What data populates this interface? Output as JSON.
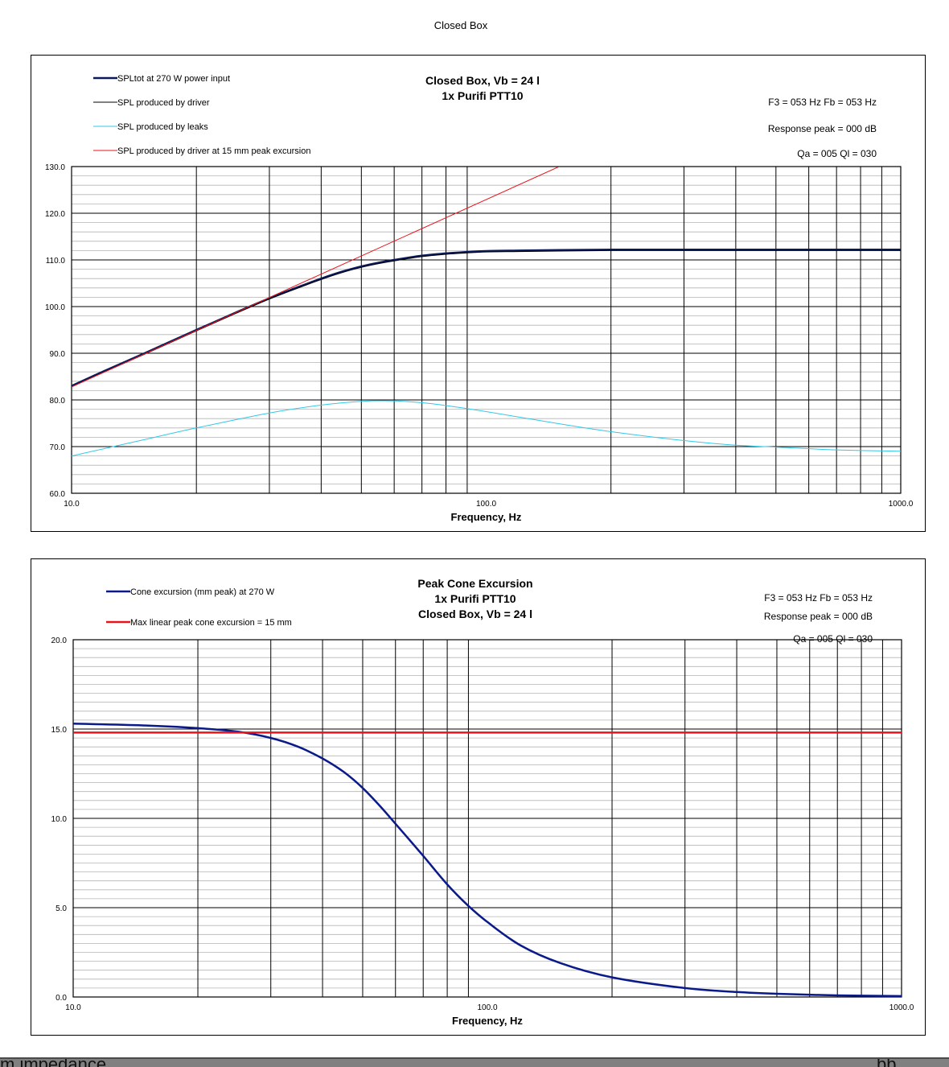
{
  "page_title": "Closed Box",
  "chart_data": [
    {
      "type": "line",
      "title": "Closed Box, Vb = 24 l",
      "subtitle": "1x Purifi PTT10",
      "xlabel": "Frequency, Hz",
      "ylabel": "",
      "x_scale": "log",
      "xlim": [
        10,
        1000
      ],
      "ylim": [
        60,
        130
      ],
      "yticks": [
        60,
        70,
        80,
        90,
        100,
        110,
        120,
        130
      ],
      "ytick_labels": [
        "60.0",
        "70.0",
        "80.0",
        "90.0",
        "100.0",
        "110.0",
        "120.0",
        "130.0"
      ],
      "xtick_labels": [
        "10.0",
        "100.0",
        "1000.0"
      ],
      "grid": true,
      "legend_position": "top-left",
      "annotations": [
        "F3 = 053 Hz  Fb = 053 Hz",
        "Response peak = 000 dB",
        "Qa = 005  Ql = 030"
      ],
      "series": [
        {
          "name": "SPLtot at 270 W power input",
          "color": "#0a1a5c",
          "width": 2.5,
          "x": [
            10,
            12,
            15,
            20,
            25,
            30,
            35,
            40,
            45,
            50,
            55,
            60,
            70,
            80,
            90,
            100,
            120,
            150,
            200,
            300,
            500,
            700,
            1000
          ],
          "y": [
            83.0,
            86.2,
            90.0,
            95.0,
            98.8,
            101.8,
            104.1,
            106.0,
            107.5,
            108.6,
            109.4,
            110.0,
            110.9,
            111.4,
            111.7,
            111.9,
            112.0,
            112.1,
            112.2,
            112.2,
            112.2,
            112.2,
            112.2
          ]
        },
        {
          "name": "SPL produced by driver",
          "color": "#000000",
          "width": 1,
          "x": [
            10,
            12,
            15,
            20,
            25,
            30,
            35,
            40,
            45,
            50,
            55,
            60,
            70,
            80,
            90,
            100,
            120,
            150,
            200,
            300,
            500,
            700,
            1000
          ],
          "y": [
            82.8,
            86.0,
            89.8,
            94.8,
            98.6,
            101.6,
            103.9,
            105.8,
            107.3,
            108.4,
            109.2,
            109.8,
            110.7,
            111.2,
            111.5,
            111.7,
            111.8,
            111.9,
            112.0,
            112.0,
            112.0,
            112.0,
            112.0
          ]
        },
        {
          "name": "SPL produced by leaks",
          "color": "#33c8e8",
          "width": 1,
          "x": [
            10,
            15,
            20,
            30,
            40,
            50,
            60,
            70,
            80,
            100,
            150,
            200,
            300,
            400,
            500,
            700,
            1000
          ],
          "y": [
            68.0,
            71.5,
            74.0,
            77.2,
            78.9,
            79.7,
            79.8,
            79.4,
            78.8,
            77.5,
            74.9,
            73.2,
            71.3,
            70.3,
            69.9,
            69.3,
            69.0
          ]
        },
        {
          "name": "SPL produced by driver at 15 mm peak excursion",
          "color": "#e8141c",
          "width": 1,
          "x": [
            10,
            150
          ],
          "y": [
            82.8,
            130.0
          ]
        }
      ]
    },
    {
      "type": "line",
      "title": "Peak Cone Excursion",
      "subtitle": "1x Purifi PTT10",
      "subtitle2": "Closed Box, Vb = 24 l",
      "xlabel": "Frequency, Hz",
      "ylabel": "",
      "x_scale": "log",
      "xlim": [
        10,
        1000
      ],
      "ylim": [
        0,
        20
      ],
      "yticks": [
        0,
        5,
        10,
        15,
        20
      ],
      "ytick_labels": [
        "0.0",
        "5.0",
        "10.0",
        "15.0",
        "20.0"
      ],
      "xtick_labels": [
        "10.0",
        "100.0",
        "1000.0"
      ],
      "grid": true,
      "legend_position": "top-left",
      "annotations": [
        "F3 = 053 Hz  Fb = 053 Hz",
        "Response peak = 000 dB",
        "Qa = 005  Ql = 030"
      ],
      "series": [
        {
          "name": "Cone excursion (mm peak) at 270 W",
          "color": "#0a1a8a",
          "width": 2.5,
          "x": [
            10,
            15,
            20,
            25,
            30,
            35,
            40,
            45,
            50,
            55,
            60,
            70,
            80,
            90,
            100,
            120,
            150,
            200,
            300,
            400,
            500,
            700,
            1000
          ],
          "y": [
            15.3,
            15.2,
            15.05,
            14.85,
            14.5,
            14.0,
            13.35,
            12.6,
            11.7,
            10.7,
            9.7,
            7.9,
            6.3,
            5.1,
            4.2,
            2.9,
            1.9,
            1.1,
            0.5,
            0.28,
            0.18,
            0.09,
            0.05
          ]
        },
        {
          "name": "Max linear peak cone excursion = 15 mm",
          "color": "#e8141c",
          "width": 2.5,
          "x": [
            10,
            1000
          ],
          "y": [
            14.8,
            14.8
          ]
        }
      ]
    }
  ],
  "footer_partial_text": "m impedance",
  "footer_partial_text_right": "bb"
}
